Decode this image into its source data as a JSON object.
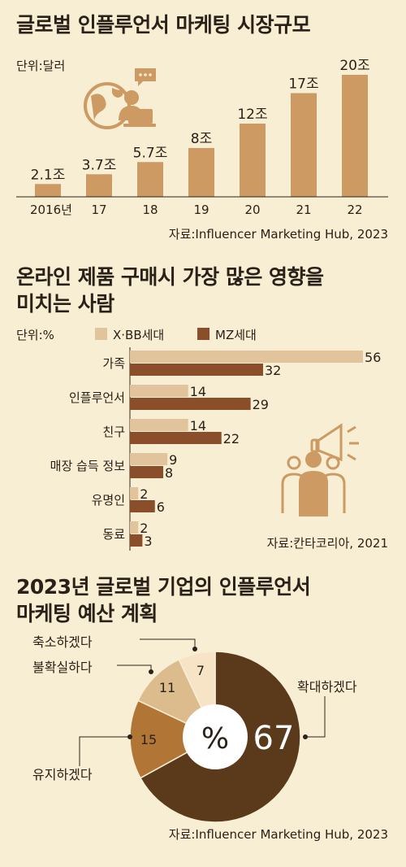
{
  "section1": {
    "title": "글로벌 인플루언서 마케팅 시장규모",
    "unit": "단위:달러",
    "source": "자료:Influencer Marketing Hub, 2023"
  },
  "section2": {
    "title_line1": "온라인 제품 구매시 가장 많은 영향을",
    "title_line2": "미치는 사람",
    "unit": "단위:%",
    "legend_a": "X·BB세대",
    "legend_b": "MZ세대",
    "source": "자료:칸타코리아, 2021"
  },
  "section3": {
    "title_line1": "2023년 글로벌 기업의 인플루언서",
    "title_line2": "마케팅 예산 계획",
    "center_label": "%",
    "source": "자료:Influencer Marketing Hub, 2023"
  },
  "colors": {
    "background": "#f8eed3",
    "bar": "#cc9a62",
    "xbb": "#e2c49c",
    "mz": "#8a4e2a",
    "pie_expand": "#5b3a1c",
    "pie_maintain": "#b17636",
    "pie_unsure": "#dcbb8d",
    "pie_reduce": "#f7e4c7"
  },
  "chart_data": [
    {
      "type": "bar",
      "categories": [
        "2016년",
        "17",
        "18",
        "19",
        "20",
        "21",
        "22"
      ],
      "values": [
        2.1,
        3.7,
        5.7,
        8,
        12,
        17,
        20
      ],
      "labels": [
        "2.1조",
        "3.7조",
        "5.7조",
        "8조",
        "12조",
        "17조",
        "20조"
      ],
      "ylim": [
        0,
        20
      ]
    },
    {
      "type": "bar",
      "orientation": "horizontal",
      "categories": [
        "가족",
        "인플루언서",
        "친구",
        "매장 습득 정보",
        "유명인",
        "동료"
      ],
      "series": [
        {
          "name": "X·BB세대",
          "values": [
            56,
            14,
            14,
            9,
            2,
            2
          ]
        },
        {
          "name": "MZ세대",
          "values": [
            32,
            29,
            22,
            8,
            6,
            3
          ]
        }
      ],
      "xlim": [
        0,
        56
      ]
    },
    {
      "type": "pie",
      "style": "donut",
      "categories": [
        "확대하겠다",
        "유지하겠다",
        "불확실하다",
        "축소하겠다"
      ],
      "values": [
        67,
        15,
        11,
        7
      ]
    }
  ]
}
